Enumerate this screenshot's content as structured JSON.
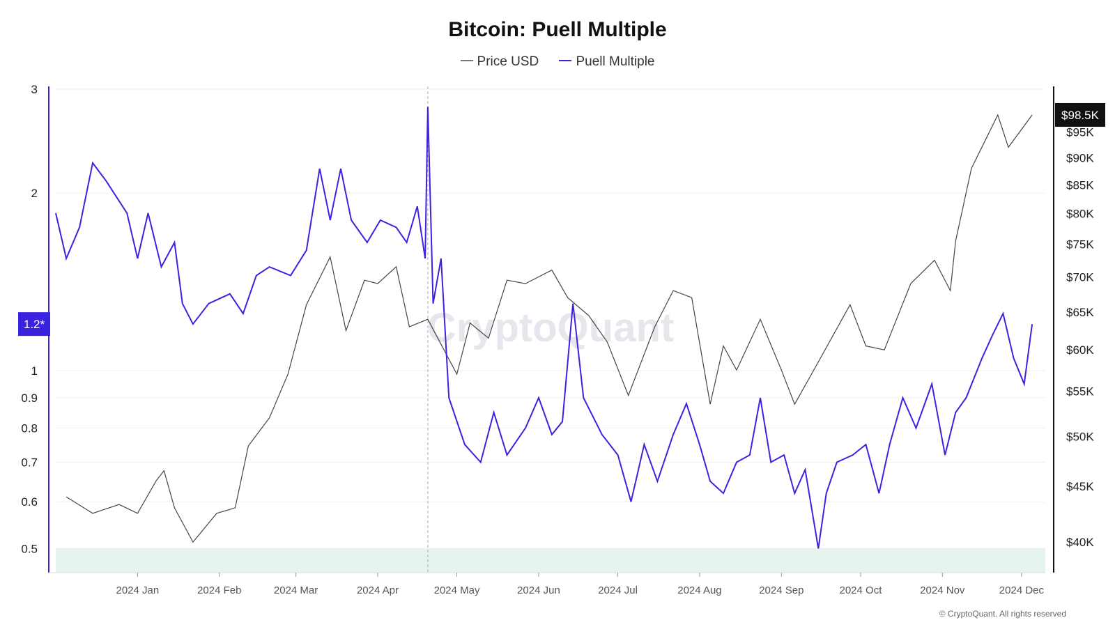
{
  "chart_data": {
    "type": "line",
    "title": "Bitcoin: Puell Multiple",
    "legend": [
      "Price USD",
      "Puell Multiple"
    ],
    "colors": {
      "price": "#555555",
      "puell": "#3b22e0",
      "zone": "#e6f4ee",
      "badge_left": "#3b22e0",
      "badge_right": "#111111"
    },
    "left_axis": {
      "scale": "log",
      "ticks": [
        "3",
        "2",
        "1",
        "0.9",
        "0.8",
        "0.7",
        "0.6",
        "0.5"
      ],
      "range": [
        0.455,
        3
      ]
    },
    "right_axis": {
      "scale": "log",
      "ticks": [
        "$95K",
        "$90K",
        "$85K",
        "$80K",
        "$75K",
        "$70K",
        "$65K",
        "$60K",
        "$55K",
        "$50K",
        "$45K",
        "$40K"
      ],
      "range": [
        37500,
        104000
      ]
    },
    "x_ticks": [
      "2024 Jan",
      "2024 Feb",
      "2024 Mar",
      "2024 Apr",
      "2024 May",
      "2024 Jun",
      "2024 Jul",
      "2024 Aug",
      "2024 Sep",
      "2024 Oct",
      "2024 Nov",
      "2024 Dec"
    ],
    "current_labels": {
      "puell": "1.2*",
      "price": "$98.5K"
    },
    "zone_below": 0.5,
    "halving_marker_date": "2024-04-20",
    "price_series": [
      [
        "2023-12-05",
        44000
      ],
      [
        "2023-12-15",
        42500
      ],
      [
        "2023-12-25",
        43300
      ],
      [
        "2024-01-01",
        42500
      ],
      [
        "2024-01-08",
        45500
      ],
      [
        "2024-01-11",
        46500
      ],
      [
        "2024-01-15",
        43000
      ],
      [
        "2024-01-22",
        40000
      ],
      [
        "2024-01-31",
        42500
      ],
      [
        "2024-02-07",
        43000
      ],
      [
        "2024-02-12",
        49000
      ],
      [
        "2024-02-20",
        52000
      ],
      [
        "2024-02-27",
        57000
      ],
      [
        "2024-03-05",
        66000
      ],
      [
        "2024-03-14",
        73000
      ],
      [
        "2024-03-20",
        62500
      ],
      [
        "2024-03-27",
        69500
      ],
      [
        "2024-04-01",
        69000
      ],
      [
        "2024-04-08",
        71500
      ],
      [
        "2024-04-13",
        63000
      ],
      [
        "2024-04-20",
        64000
      ],
      [
        "2024-05-01",
        57000
      ],
      [
        "2024-05-06",
        63500
      ],
      [
        "2024-05-13",
        61500
      ],
      [
        "2024-05-20",
        69500
      ],
      [
        "2024-05-27",
        69000
      ],
      [
        "2024-06-06",
        71000
      ],
      [
        "2024-06-12",
        67000
      ],
      [
        "2024-06-20",
        64500
      ],
      [
        "2024-06-27",
        61000
      ],
      [
        "2024-07-05",
        54500
      ],
      [
        "2024-07-15",
        63000
      ],
      [
        "2024-07-22",
        68000
      ],
      [
        "2024-07-29",
        67000
      ],
      [
        "2024-08-05",
        53500
      ],
      [
        "2024-08-10",
        60500
      ],
      [
        "2024-08-15",
        57500
      ],
      [
        "2024-08-24",
        64000
      ],
      [
        "2024-09-01",
        57500
      ],
      [
        "2024-09-06",
        53500
      ],
      [
        "2024-09-15",
        58500
      ],
      [
        "2024-09-27",
        66000
      ],
      [
        "2024-10-03",
        60500
      ],
      [
        "2024-10-10",
        60000
      ],
      [
        "2024-10-20",
        69000
      ],
      [
        "2024-10-29",
        72500
      ],
      [
        "2024-11-04",
        68000
      ],
      [
        "2024-11-06",
        75500
      ],
      [
        "2024-11-12",
        88000
      ],
      [
        "2024-11-22",
        98500
      ],
      [
        "2024-11-26",
        92000
      ],
      [
        "2024-12-05",
        98500
      ]
    ],
    "puell_series": [
      [
        "2023-12-01",
        1.85
      ],
      [
        "2023-12-05",
        1.55
      ],
      [
        "2023-12-10",
        1.75
      ],
      [
        "2023-12-15",
        2.25
      ],
      [
        "2023-12-20",
        2.1
      ],
      [
        "2023-12-28",
        1.85
      ],
      [
        "2024-01-01",
        1.55
      ],
      [
        "2024-01-05",
        1.85
      ],
      [
        "2024-01-10",
        1.5
      ],
      [
        "2024-01-15",
        1.65
      ],
      [
        "2024-01-18",
        1.3
      ],
      [
        "2024-01-22",
        1.2
      ],
      [
        "2024-01-28",
        1.3
      ],
      [
        "2024-02-05",
        1.35
      ],
      [
        "2024-02-10",
        1.25
      ],
      [
        "2024-02-15",
        1.45
      ],
      [
        "2024-02-20",
        1.5
      ],
      [
        "2024-02-28",
        1.45
      ],
      [
        "2024-03-05",
        1.6
      ],
      [
        "2024-03-10",
        2.2
      ],
      [
        "2024-03-14",
        1.8
      ],
      [
        "2024-03-18",
        2.2
      ],
      [
        "2024-03-22",
        1.8
      ],
      [
        "2024-03-28",
        1.65
      ],
      [
        "2024-04-02",
        1.8
      ],
      [
        "2024-04-08",
        1.75
      ],
      [
        "2024-04-12",
        1.65
      ],
      [
        "2024-04-16",
        1.9
      ],
      [
        "2024-04-19",
        1.55
      ],
      [
        "2024-04-20",
        2.8
      ],
      [
        "2024-04-22",
        1.3
      ],
      [
        "2024-04-25",
        1.55
      ],
      [
        "2024-04-28",
        0.9
      ],
      [
        "2024-05-04",
        0.75
      ],
      [
        "2024-05-10",
        0.7
      ],
      [
        "2024-05-15",
        0.85
      ],
      [
        "2024-05-20",
        0.72
      ],
      [
        "2024-05-27",
        0.8
      ],
      [
        "2024-06-01",
        0.9
      ],
      [
        "2024-06-06",
        0.78
      ],
      [
        "2024-06-10",
        0.82
      ],
      [
        "2024-06-14",
        1.3
      ],
      [
        "2024-06-18",
        0.9
      ],
      [
        "2024-06-25",
        0.78
      ],
      [
        "2024-07-01",
        0.72
      ],
      [
        "2024-07-06",
        0.6
      ],
      [
        "2024-07-11",
        0.75
      ],
      [
        "2024-07-16",
        0.65
      ],
      [
        "2024-07-22",
        0.78
      ],
      [
        "2024-07-27",
        0.88
      ],
      [
        "2024-08-01",
        0.75
      ],
      [
        "2024-08-05",
        0.65
      ],
      [
        "2024-08-10",
        0.62
      ],
      [
        "2024-08-15",
        0.7
      ],
      [
        "2024-08-20",
        0.72
      ],
      [
        "2024-08-24",
        0.9
      ],
      [
        "2024-08-28",
        0.7
      ],
      [
        "2024-09-02",
        0.72
      ],
      [
        "2024-09-06",
        0.62
      ],
      [
        "2024-09-10",
        0.68
      ],
      [
        "2024-09-15",
        0.5
      ],
      [
        "2024-09-18",
        0.62
      ],
      [
        "2024-09-22",
        0.7
      ],
      [
        "2024-09-28",
        0.72
      ],
      [
        "2024-10-03",
        0.75
      ],
      [
        "2024-10-08",
        0.62
      ],
      [
        "2024-10-12",
        0.75
      ],
      [
        "2024-10-17",
        0.9
      ],
      [
        "2024-10-22",
        0.8
      ],
      [
        "2024-10-28",
        0.95
      ],
      [
        "2024-11-02",
        0.72
      ],
      [
        "2024-11-06",
        0.85
      ],
      [
        "2024-11-10",
        0.9
      ],
      [
        "2024-11-16",
        1.05
      ],
      [
        "2024-11-20",
        1.15
      ],
      [
        "2024-11-24",
        1.25
      ],
      [
        "2024-11-28",
        1.05
      ],
      [
        "2024-12-02",
        0.95
      ],
      [
        "2024-12-05",
        1.2
      ]
    ]
  },
  "footer": "© CryptoQuant. All rights reserved",
  "watermark": "CryptoQuant"
}
